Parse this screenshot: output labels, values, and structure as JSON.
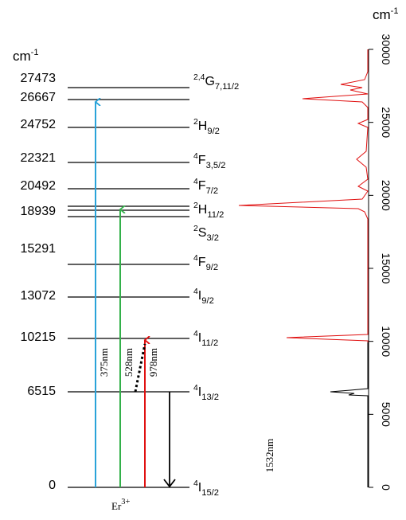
{
  "left_unit": {
    "main": "cm",
    "sup": "-1"
  },
  "energies": [
    "27473",
    "26667",
    "24752",
    "22321",
    "20492",
    "18939",
    "15291",
    "13072",
    "10215",
    "6515",
    "0"
  ],
  "terms": [
    {
      "sup": "2,4",
      "main": "G",
      "sub": "7,11/2"
    },
    {
      "sup": "2",
      "main": "H",
      "sub": "9/2"
    },
    {
      "sup": "4",
      "main": "F",
      "sub": "3,5/2"
    },
    {
      "sup": "4",
      "main": "F",
      "sub": "7/2"
    },
    {
      "sup": "2",
      "main": "H",
      "sub": "11/2"
    },
    {
      "sup": "2",
      "main": "S",
      "sub": "3/2"
    },
    {
      "sup": "4",
      "main": "F",
      "sub": "9/2"
    },
    {
      "sup": "4",
      "main": "I",
      "sub": "9/2"
    },
    {
      "sup": "4",
      "main": "I",
      "sub": "11/2"
    },
    {
      "sup": "4",
      "main": "I",
      "sub": "13/2"
    },
    {
      "sup": "4",
      "main": "I",
      "sub": "15/2"
    }
  ],
  "transitions": [
    "375nm",
    "528nm",
    "978nm",
    "1532nm"
  ],
  "ion": {
    "main": "Er",
    "sup": "3+"
  },
  "spectrum": {
    "unit": {
      "main": "cm",
      "sup": "-1"
    },
    "ticks": [
      "0",
      "5000",
      "10000",
      "15000",
      "20000",
      "25000",
      "30000"
    ]
  }
}
